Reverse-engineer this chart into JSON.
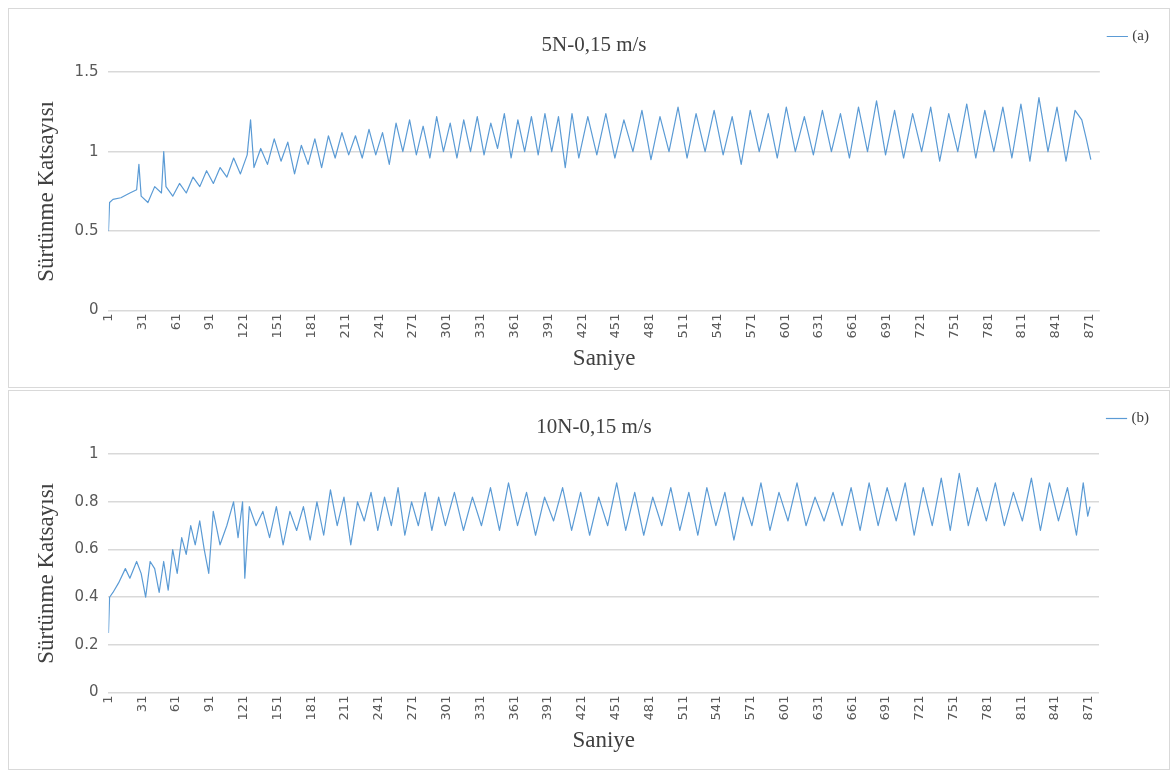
{
  "chart_data": [
    {
      "type": "line",
      "title": "5N-0,15 m/s",
      "xlabel": "Saniye",
      "ylabel": "Sürtünme Katsayısı",
      "xlim": [
        1,
        880
      ],
      "xticks": [
        1,
        31,
        61,
        91,
        121,
        151,
        181,
        211,
        241,
        271,
        301,
        331,
        361,
        391,
        421,
        451,
        481,
        511,
        541,
        571,
        601,
        631,
        661,
        691,
        721,
        751,
        781,
        811,
        841,
        871
      ],
      "ylim": [
        0,
        1.5
      ],
      "yticks": [
        0,
        0.5,
        1,
        1.5
      ],
      "grid": "y",
      "legend": "top right",
      "marker": "none",
      "line_style": "solid",
      "series": [
        {
          "name": "(a)",
          "color": "#5b9bd5",
          "x": [
            1,
            2,
            5,
            12,
            20,
            26,
            28,
            30,
            36,
            42,
            48,
            50,
            52,
            58,
            64,
            70,
            76,
            82,
            88,
            94,
            100,
            106,
            112,
            118,
            124,
            127,
            130,
            136,
            142,
            148,
            154,
            160,
            166,
            172,
            178,
            184,
            190,
            196,
            202,
            208,
            214,
            220,
            226,
            232,
            238,
            244,
            250,
            256,
            262,
            268,
            274,
            280,
            286,
            292,
            298,
            304,
            310,
            316,
            322,
            328,
            334,
            340,
            346,
            352,
            358,
            364,
            370,
            376,
            382,
            388,
            394,
            400,
            406,
            412,
            418,
            426,
            434,
            442,
            450,
            458,
            466,
            474,
            482,
            490,
            498,
            506,
            514,
            522,
            530,
            538,
            546,
            554,
            562,
            570,
            578,
            586,
            594,
            602,
            610,
            618,
            626,
            634,
            642,
            650,
            658,
            666,
            674,
            682,
            690,
            698,
            706,
            714,
            722,
            730,
            738,
            746,
            754,
            762,
            770,
            778,
            786,
            794,
            802,
            810,
            818,
            826,
            834,
            842,
            850,
            858,
            864,
            868,
            872
          ],
          "values": [
            0.5,
            0.68,
            0.7,
            0.71,
            0.74,
            0.76,
            0.92,
            0.72,
            0.68,
            0.78,
            0.74,
            1.0,
            0.78,
            0.72,
            0.8,
            0.74,
            0.84,
            0.78,
            0.88,
            0.8,
            0.9,
            0.84,
            0.96,
            0.86,
            0.98,
            1.2,
            0.9,
            1.02,
            0.92,
            1.08,
            0.94,
            1.06,
            0.86,
            1.04,
            0.92,
            1.08,
            0.9,
            1.1,
            0.96,
            1.12,
            0.98,
            1.1,
            0.96,
            1.14,
            0.98,
            1.12,
            0.92,
            1.18,
            1.0,
            1.2,
            0.98,
            1.16,
            0.96,
            1.22,
            1.0,
            1.18,
            0.96,
            1.2,
            1.0,
            1.22,
            0.98,
            1.18,
            1.02,
            1.24,
            0.96,
            1.2,
            1.0,
            1.22,
            0.98,
            1.24,
            1.0,
            1.22,
            0.9,
            1.24,
            0.96,
            1.22,
            0.98,
            1.24,
            0.96,
            1.2,
            1.0,
            1.26,
            0.95,
            1.22,
            1.0,
            1.28,
            0.96,
            1.24,
            1.0,
            1.26,
            0.98,
            1.22,
            0.92,
            1.26,
            1.0,
            1.24,
            0.96,
            1.28,
            1.0,
            1.22,
            0.98,
            1.26,
            1.0,
            1.24,
            0.96,
            1.28,
            1.0,
            1.32,
            0.98,
            1.26,
            0.96,
            1.24,
            1.0,
            1.28,
            0.94,
            1.24,
            1.0,
            1.3,
            0.96,
            1.26,
            1.0,
            1.28,
            0.96,
            1.3,
            0.94,
            1.34,
            1.0,
            1.28,
            0.94,
            1.26,
            1.2,
            1.08,
            0.95
          ]
        }
      ]
    },
    {
      "type": "line",
      "title": "10N-0,15 m/s",
      "xlabel": "Saniye",
      "ylabel": "Sürtünme Katsayısı",
      "xlim": [
        1,
        880
      ],
      "xticks": [
        1,
        31,
        61,
        91,
        121,
        151,
        181,
        211,
        241,
        271,
        301,
        331,
        361,
        391,
        421,
        451,
        481,
        511,
        541,
        571,
        601,
        631,
        661,
        691,
        721,
        751,
        781,
        811,
        841,
        871
      ],
      "ylim": [
        0,
        1
      ],
      "yticks": [
        0,
        0.2,
        0.4,
        0.6,
        0.8,
        1
      ],
      "grid": "y",
      "legend": "top right",
      "marker": "none",
      "line_style": "solid",
      "series": [
        {
          "name": "(b)",
          "color": "#5b9bd5",
          "x": [
            1,
            2,
            5,
            10,
            16,
            20,
            26,
            30,
            34,
            38,
            42,
            46,
            50,
            54,
            58,
            62,
            66,
            70,
            74,
            78,
            82,
            86,
            90,
            94,
            100,
            106,
            112,
            116,
            120,
            122,
            126,
            132,
            138,
            144,
            150,
            156,
            162,
            168,
            174,
            180,
            186,
            192,
            198,
            204,
            210,
            216,
            222,
            228,
            234,
            240,
            246,
            252,
            258,
            264,
            270,
            276,
            282,
            288,
            294,
            300,
            308,
            316,
            324,
            332,
            340,
            348,
            356,
            364,
            372,
            380,
            388,
            396,
            404,
            412,
            420,
            428,
            436,
            444,
            452,
            460,
            468,
            476,
            484,
            492,
            500,
            508,
            516,
            524,
            532,
            540,
            548,
            556,
            564,
            572,
            580,
            588,
            596,
            604,
            612,
            620,
            628,
            636,
            644,
            652,
            660,
            668,
            676,
            684,
            692,
            700,
            708,
            716,
            724,
            732,
            740,
            748,
            756,
            764,
            772,
            780,
            788,
            796,
            804,
            812,
            820,
            828,
            836,
            844,
            852,
            860,
            866,
            870,
            872
          ],
          "values": [
            0.25,
            0.4,
            0.42,
            0.46,
            0.52,
            0.48,
            0.55,
            0.5,
            0.4,
            0.55,
            0.52,
            0.42,
            0.55,
            0.43,
            0.6,
            0.5,
            0.65,
            0.58,
            0.7,
            0.62,
            0.72,
            0.6,
            0.5,
            0.76,
            0.62,
            0.7,
            0.8,
            0.65,
            0.8,
            0.48,
            0.78,
            0.7,
            0.76,
            0.65,
            0.78,
            0.62,
            0.76,
            0.68,
            0.78,
            0.64,
            0.8,
            0.66,
            0.85,
            0.7,
            0.82,
            0.62,
            0.8,
            0.72,
            0.84,
            0.68,
            0.82,
            0.7,
            0.86,
            0.66,
            0.8,
            0.7,
            0.84,
            0.68,
            0.82,
            0.7,
            0.84,
            0.68,
            0.82,
            0.7,
            0.86,
            0.68,
            0.88,
            0.7,
            0.84,
            0.66,
            0.82,
            0.72,
            0.86,
            0.68,
            0.84,
            0.66,
            0.82,
            0.7,
            0.88,
            0.68,
            0.84,
            0.66,
            0.82,
            0.7,
            0.86,
            0.68,
            0.84,
            0.66,
            0.86,
            0.7,
            0.84,
            0.64,
            0.82,
            0.7,
            0.88,
            0.68,
            0.84,
            0.72,
            0.88,
            0.7,
            0.82,
            0.72,
            0.84,
            0.7,
            0.86,
            0.68,
            0.88,
            0.7,
            0.86,
            0.72,
            0.88,
            0.66,
            0.86,
            0.7,
            0.9,
            0.68,
            0.92,
            0.7,
            0.86,
            0.72,
            0.88,
            0.7,
            0.84,
            0.72,
            0.9,
            0.68,
            0.88,
            0.72,
            0.86,
            0.66,
            0.88,
            0.74,
            0.78
          ]
        }
      ]
    }
  ]
}
